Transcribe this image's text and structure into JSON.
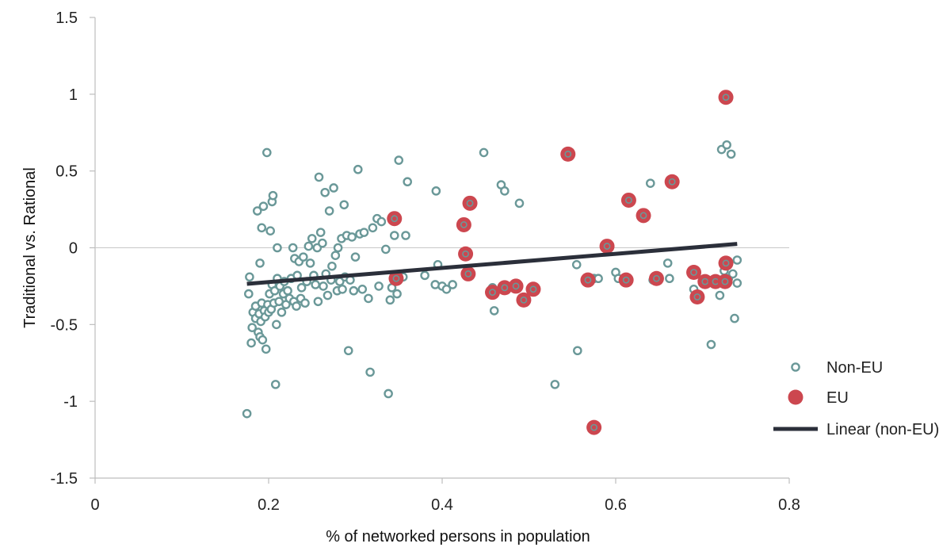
{
  "chart_data": {
    "type": "scatter",
    "xlabel": "% of networked persons in population",
    "ylabel": "Traditional vs. Rational",
    "xlim": [
      0,
      0.8
    ],
    "ylim": [
      -1.5,
      1.5
    ],
    "x_ticks": [
      "0",
      "0.2",
      "0.4",
      "0.6",
      "0.8"
    ],
    "y_ticks": [
      "1.5",
      "1",
      "0.5",
      "0",
      "-0.5",
      "-1",
      "-1.5"
    ],
    "grid": false,
    "zero_line": true,
    "legend_position": "right",
    "colors": {
      "non_eu": "#6a9898",
      "eu": "#cc474f",
      "trend": "#2b2f3a",
      "zero_line": "#c8c8c8",
      "axis": "#bdbdbd"
    },
    "series": [
      {
        "name": "Non-EU",
        "marker": "hollow-circle",
        "points": [
          [
            0.175,
            -1.08
          ],
          [
            0.177,
            -0.3
          ],
          [
            0.178,
            -0.19
          ],
          [
            0.18,
            -0.62
          ],
          [
            0.181,
            -0.52
          ],
          [
            0.182,
            -0.42
          ],
          [
            0.185,
            -0.38
          ],
          [
            0.185,
            -0.46
          ],
          [
            0.187,
            0.24
          ],
          [
            0.188,
            -0.55
          ],
          [
            0.189,
            -0.43
          ],
          [
            0.19,
            -0.58
          ],
          [
            0.19,
            -0.1
          ],
          [
            0.191,
            -0.48
          ],
          [
            0.192,
            0.13
          ],
          [
            0.192,
            -0.36
          ],
          [
            0.193,
            -0.6
          ],
          [
            0.194,
            0.27
          ],
          [
            0.195,
            -0.41
          ],
          [
            0.196,
            -0.45
          ],
          [
            0.197,
            -0.66
          ],
          [
            0.198,
            0.62
          ],
          [
            0.199,
            -0.37
          ],
          [
            0.2,
            -0.42
          ],
          [
            0.201,
            -0.3
          ],
          [
            0.202,
            0.11
          ],
          [
            0.203,
            -0.4
          ],
          [
            0.204,
            0.3
          ],
          [
            0.204,
            -0.24
          ],
          [
            0.205,
            0.34
          ],
          [
            0.206,
            -0.36
          ],
          [
            0.207,
            -0.28
          ],
          [
            0.208,
            -0.89
          ],
          [
            0.209,
            -0.5
          ],
          [
            0.21,
            -0.2
          ],
          [
            0.21,
            0.0
          ],
          [
            0.212,
            -0.35
          ],
          [
            0.213,
            -0.25
          ],
          [
            0.215,
            -0.42
          ],
          [
            0.217,
            -0.3
          ],
          [
            0.218,
            -0.22
          ],
          [
            0.22,
            -0.37
          ],
          [
            0.222,
            -0.28
          ],
          [
            0.224,
            -0.33
          ],
          [
            0.226,
            -0.2
          ],
          [
            0.228,
            0.0
          ],
          [
            0.229,
            -0.35
          ],
          [
            0.23,
            -0.07
          ],
          [
            0.232,
            -0.38
          ],
          [
            0.233,
            -0.18
          ],
          [
            0.235,
            -0.09
          ],
          [
            0.237,
            -0.33
          ],
          [
            0.238,
            -0.26
          ],
          [
            0.24,
            -0.06
          ],
          [
            0.242,
            -0.36
          ],
          [
            0.244,
            -0.22
          ],
          [
            0.246,
            0.01
          ],
          [
            0.248,
            -0.1
          ],
          [
            0.25,
            0.06
          ],
          [
            0.252,
            -0.18
          ],
          [
            0.254,
            -0.24
          ],
          [
            0.256,
            0.0
          ],
          [
            0.257,
            -0.35
          ],
          [
            0.258,
            0.46
          ],
          [
            0.26,
            0.1
          ],
          [
            0.262,
            0.03
          ],
          [
            0.263,
            -0.25
          ],
          [
            0.265,
            0.36
          ],
          [
            0.266,
            -0.17
          ],
          [
            0.268,
            -0.31
          ],
          [
            0.27,
            0.24
          ],
          [
            0.272,
            -0.21
          ],
          [
            0.273,
            -0.12
          ],
          [
            0.275,
            0.39
          ],
          [
            0.277,
            -0.05
          ],
          [
            0.279,
            -0.28
          ],
          [
            0.28,
            0.0
          ],
          [
            0.282,
            -0.22
          ],
          [
            0.284,
            0.06
          ],
          [
            0.285,
            -0.27
          ],
          [
            0.287,
            0.28
          ],
          [
            0.288,
            -0.19
          ],
          [
            0.29,
            0.08
          ],
          [
            0.292,
            -0.67
          ],
          [
            0.294,
            -0.21
          ],
          [
            0.296,
            0.07
          ],
          [
            0.298,
            -0.28
          ],
          [
            0.3,
            -0.06
          ],
          [
            0.303,
            0.51
          ],
          [
            0.305,
            0.09
          ],
          [
            0.308,
            -0.27
          ],
          [
            0.31,
            0.1
          ],
          [
            0.315,
            -0.33
          ],
          [
            0.317,
            -0.81
          ],
          [
            0.32,
            0.13
          ],
          [
            0.325,
            0.19
          ],
          [
            0.327,
            -0.25
          ],
          [
            0.33,
            0.17
          ],
          [
            0.335,
            -0.01
          ],
          [
            0.338,
            -0.95
          ],
          [
            0.34,
            -0.34
          ],
          [
            0.342,
            -0.26
          ],
          [
            0.345,
            0.08
          ],
          [
            0.348,
            -0.3
          ],
          [
            0.35,
            0.57
          ],
          [
            0.355,
            -0.19
          ],
          [
            0.358,
            0.08
          ],
          [
            0.36,
            0.43
          ],
          [
            0.38,
            -0.18
          ],
          [
            0.392,
            -0.24
          ],
          [
            0.393,
            0.37
          ],
          [
            0.395,
            -0.11
          ],
          [
            0.4,
            -0.25
          ],
          [
            0.405,
            -0.27
          ],
          [
            0.412,
            -0.24
          ],
          [
            0.448,
            0.62
          ],
          [
            0.458,
            -0.26
          ],
          [
            0.46,
            -0.41
          ],
          [
            0.468,
            0.41
          ],
          [
            0.472,
            0.37
          ],
          [
            0.489,
            0.29
          ],
          [
            0.53,
            -0.89
          ],
          [
            0.555,
            -0.11
          ],
          [
            0.556,
            -0.67
          ],
          [
            0.575,
            -0.2
          ],
          [
            0.58,
            -0.2
          ],
          [
            0.6,
            -0.16
          ],
          [
            0.603,
            -0.2
          ],
          [
            0.64,
            0.42
          ],
          [
            0.643,
            -0.21
          ],
          [
            0.66,
            -0.1
          ],
          [
            0.662,
            -0.2
          ],
          [
            0.69,
            -0.27
          ],
          [
            0.7,
            -0.23
          ],
          [
            0.71,
            -0.63
          ],
          [
            0.72,
            -0.31
          ],
          [
            0.722,
            0.64
          ],
          [
            0.725,
            -0.15
          ],
          [
            0.728,
            0.67
          ],
          [
            0.73,
            -0.2
          ],
          [
            0.733,
            0.61
          ],
          [
            0.735,
            -0.17
          ],
          [
            0.737,
            -0.46
          ],
          [
            0.74,
            -0.08
          ],
          [
            0.74,
            -0.23
          ]
        ]
      },
      {
        "name": "EU",
        "marker": "filled-circle",
        "points": [
          [
            0.345,
            0.19
          ],
          [
            0.347,
            -0.2
          ],
          [
            0.425,
            0.15
          ],
          [
            0.427,
            -0.04
          ],
          [
            0.43,
            -0.17
          ],
          [
            0.432,
            0.29
          ],
          [
            0.458,
            -0.29
          ],
          [
            0.472,
            -0.26
          ],
          [
            0.485,
            -0.25
          ],
          [
            0.494,
            -0.34
          ],
          [
            0.505,
            -0.27
          ],
          [
            0.545,
            0.61
          ],
          [
            0.568,
            -0.21
          ],
          [
            0.575,
            -1.17
          ],
          [
            0.59,
            0.01
          ],
          [
            0.612,
            -0.21
          ],
          [
            0.615,
            0.31
          ],
          [
            0.632,
            0.21
          ],
          [
            0.647,
            -0.2
          ],
          [
            0.665,
            0.43
          ],
          [
            0.69,
            -0.16
          ],
          [
            0.694,
            -0.32
          ],
          [
            0.703,
            -0.22
          ],
          [
            0.715,
            -0.22
          ],
          [
            0.726,
            -0.22
          ],
          [
            0.727,
            -0.1
          ],
          [
            0.727,
            0.98
          ]
        ]
      },
      {
        "name": "Linear (non-EU)",
        "marker": "line",
        "points": [
          [
            0.175,
            -0.235
          ],
          [
            0.74,
            0.025
          ]
        ]
      }
    ]
  }
}
